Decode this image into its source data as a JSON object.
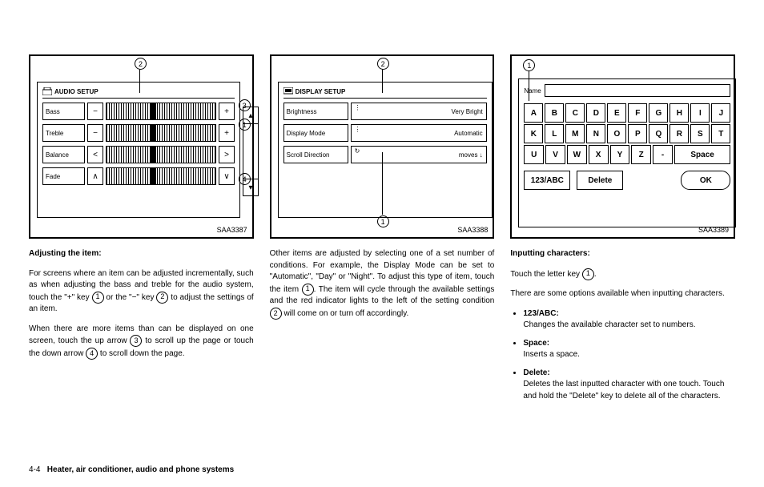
{
  "fig1": {
    "id": "SAA3387",
    "title": "AUDIO SETUP",
    "rows": [
      {
        "label": "Bass",
        "left": "−",
        "right": "+"
      },
      {
        "label": "Treble",
        "left": "−",
        "right": "+"
      },
      {
        "label": "Balance",
        "left": "<",
        "right": ">"
      },
      {
        "label": "Fade",
        "left": "∧",
        "right": "∨"
      }
    ]
  },
  "fig2": {
    "id": "SAA3388",
    "title": "DISPLAY SETUP",
    "rows": [
      {
        "label": "Brightness",
        "value": "Very Bright",
        "icon": ""
      },
      {
        "label": "Display Mode",
        "value": "Automatic",
        "icon": ""
      },
      {
        "label": "Scroll Direction",
        "value": "moves ↓",
        "icon": "↻"
      }
    ]
  },
  "fig3": {
    "id": "SAA3389",
    "name_label": "Name",
    "keys": [
      [
        "A",
        "B",
        "C",
        "D",
        "E",
        "F",
        "G",
        "H",
        "I",
        "J"
      ],
      [
        "K",
        "L",
        "M",
        "N",
        "O",
        "P",
        "Q",
        "R",
        "S",
        "T"
      ],
      [
        "U",
        "V",
        "W",
        "X",
        "Y",
        "Z",
        "-"
      ]
    ],
    "space": "Space",
    "abc": "123/ABC",
    "del": "Delete",
    "ok": "OK"
  },
  "col1": {
    "h": "Adjusting the item:",
    "p1a": "For screens where an item can be adjusted incrementally, such as when adjusting the bass and treble for the audio system, touch the \"+\" key ",
    "p1b": " or the \"−\" key ",
    "p1c": " to adjust the settings of an item.",
    "p2a": "When there are more items than can be displayed on one screen, touch the up arrow ",
    "p2b": " to scroll up the page or touch the down arrow ",
    "p2c": " to scroll down the page."
  },
  "col2": {
    "p1a": "Other items are adjusted by selecting one of a set number of conditions. For example, the Display Mode can be set to \"Automatic\", \"Day\" or \"Night\". To adjust this type of item, touch the item ",
    "p1b": ". The item will cycle through the available settings and the red indicator lights to the left of the setting condition ",
    "p1c": " will come on or turn off accordingly."
  },
  "col3": {
    "h": "Inputting characters:",
    "p1a": "Touch the letter key ",
    "p1b": ".",
    "p2": "There are some options available when inputting characters.",
    "li1h": "123/ABC:",
    "li1": "Changes the available character set to numbers.",
    "li2h": "Space:",
    "li2": "Inserts a space.",
    "li3h": "Delete:",
    "li3": "Deletes the last inputted character with one touch. Touch and hold the \"Delete\" key to delete all of the characters."
  },
  "footer": {
    "page": "4-4",
    "section": "Heater, air conditioner, audio and phone systems"
  }
}
